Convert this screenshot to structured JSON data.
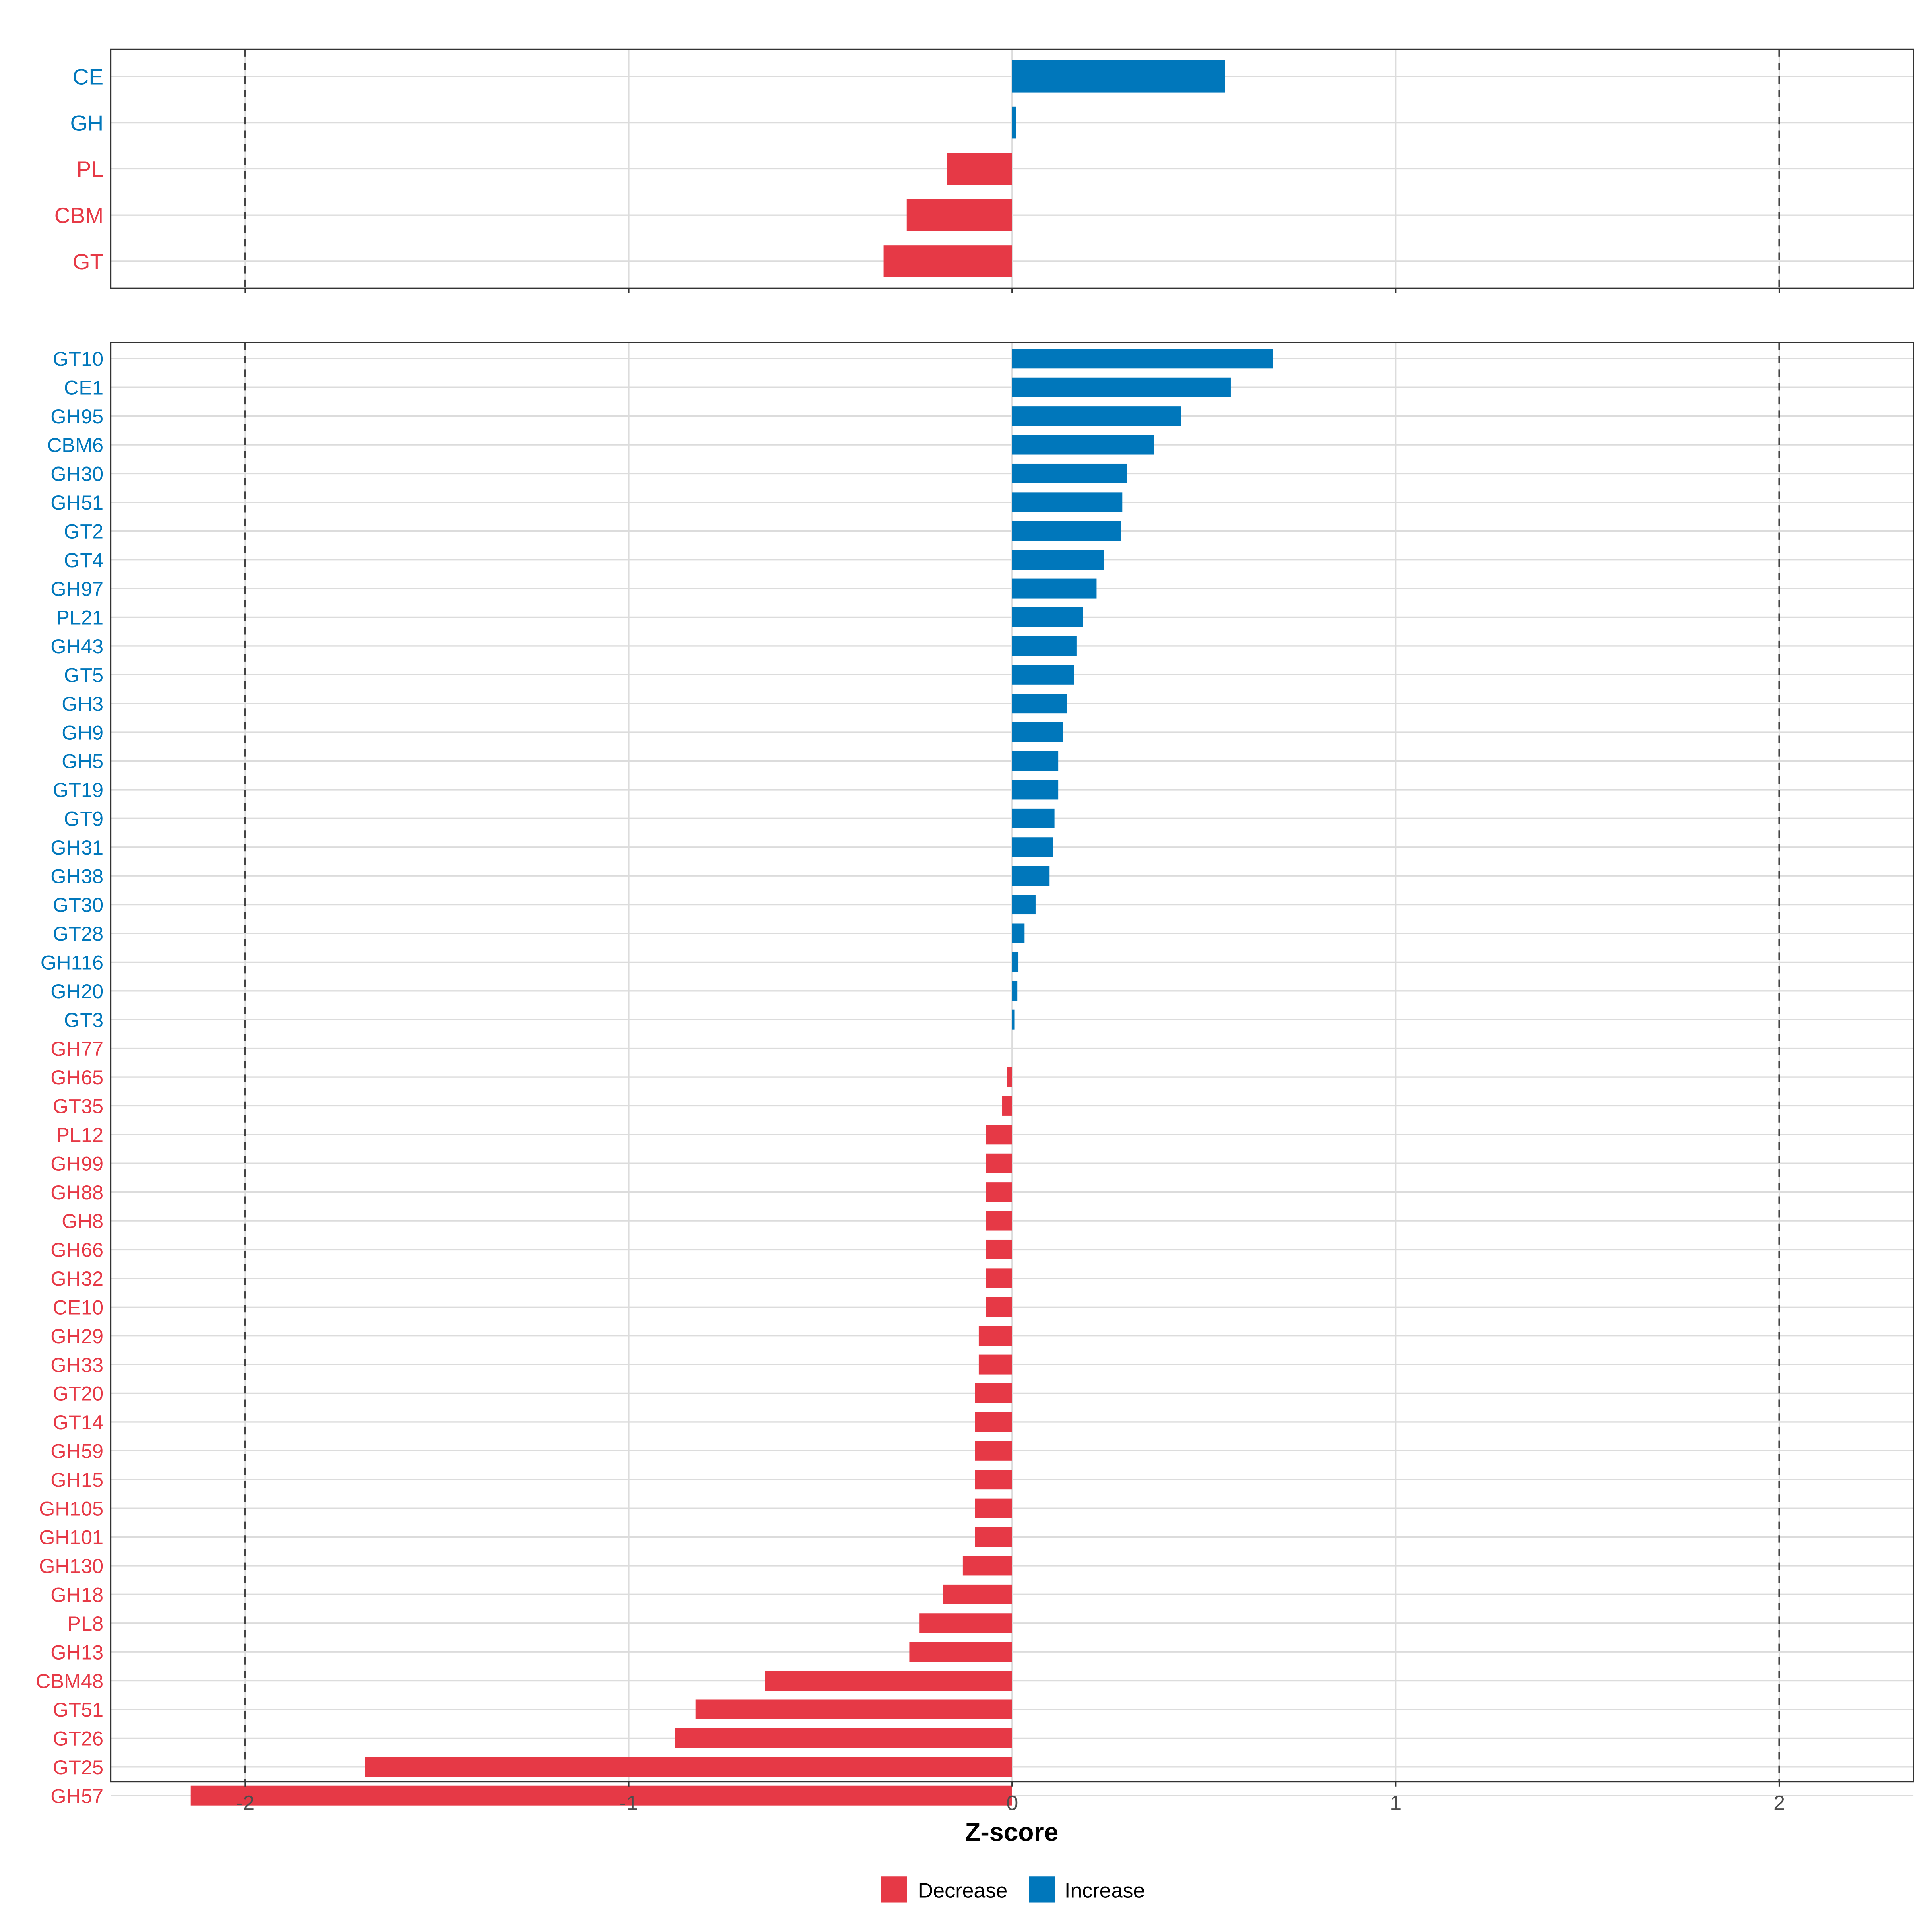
{
  "colors": {
    "Decrease": "#E63946",
    "Increase": "#0077BB"
  },
  "chart_data": [
    {
      "type": "bar",
      "orientation": "horizontal",
      "panel": "top",
      "categories": [
        "CE",
        "GH",
        "PL",
        "CBM",
        "GT"
      ],
      "values": [
        0.555,
        0.01,
        -0.17,
        -0.275,
        -0.335
      ],
      "xlim": [
        -2.35,
        2.35
      ],
      "reference_lines": [
        -2,
        2
      ],
      "grid": true
    },
    {
      "type": "bar",
      "orientation": "horizontal",
      "panel": "bottom",
      "categories": [
        "GT10",
        "CE1",
        "GH95",
        "CBM6",
        "GH30",
        "GH51",
        "GT2",
        "GT4",
        "GH97",
        "PL21",
        "GH43",
        "GT5",
        "GH3",
        "GH9",
        "GH5",
        "GT19",
        "GT9",
        "GH31",
        "GH38",
        "GT30",
        "GT28",
        "GH116",
        "GH20",
        "GT3",
        "GH77",
        "GH65",
        "GT35",
        "PL12",
        "GH99",
        "GH88",
        "GH8",
        "GH66",
        "GH32",
        "CE10",
        "GH29",
        "GH33",
        "GT20",
        "GT14",
        "GH59",
        "GH15",
        "GH105",
        "GH101",
        "GH130",
        "GH18",
        "PL8",
        "GH13",
        "CBM48",
        "GT51",
        "GT26",
        "GT25",
        "GH57"
      ],
      "values": [
        0.68,
        0.57,
        0.44,
        0.37,
        0.3,
        0.287,
        0.284,
        0.24,
        0.22,
        0.184,
        0.168,
        0.161,
        0.142,
        0.132,
        0.12,
        0.12,
        0.11,
        0.106,
        0.097,
        0.061,
        0.032,
        0.016,
        0.013,
        0.006,
        0.0,
        -0.013,
        -0.026,
        -0.068,
        -0.068,
        -0.068,
        -0.068,
        -0.068,
        -0.068,
        -0.068,
        -0.087,
        -0.087,
        -0.097,
        -0.097,
        -0.097,
        -0.097,
        -0.097,
        -0.097,
        -0.129,
        -0.18,
        -0.242,
        -0.268,
        -0.645,
        -0.826,
        -0.88,
        -1.687,
        -2.142
      ],
      "xlim": [
        -2.35,
        2.35
      ],
      "xticks": [
        -2,
        -1,
        0,
        1,
        2
      ],
      "xtick_labels": [
        "-2",
        "-1",
        "0",
        "1",
        "2"
      ],
      "xlabel": "Z-score",
      "reference_lines": [
        -2,
        2
      ],
      "grid": true
    }
  ],
  "legend": {
    "position": "bottom",
    "items": [
      "Decrease",
      "Increase"
    ]
  }
}
